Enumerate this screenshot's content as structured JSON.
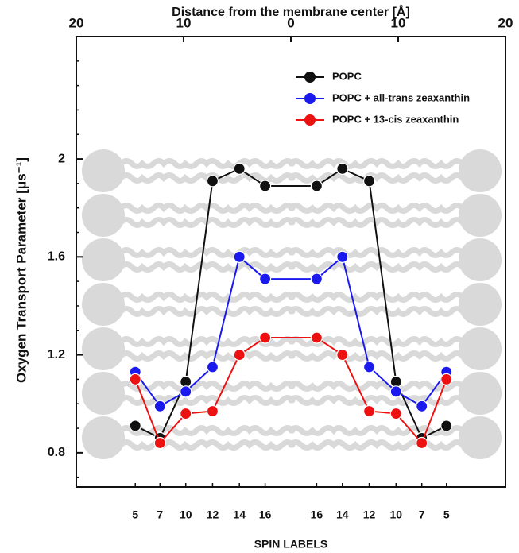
{
  "chart_data": {
    "type": "line",
    "title": "Distance from the membrane center [Å]",
    "xlabel": "SPIN LABELS",
    "ylabel": "Oxygen Transport Parameter [μs⁻¹]",
    "x": [
      -14.5,
      -12.2,
      -9.8,
      -7.3,
      -4.8,
      -2.4,
      2.4,
      4.8,
      7.3,
      9.8,
      12.2,
      14.5
    ],
    "xlim": [
      -20,
      20
    ],
    "xticks": [
      {
        "value": -20,
        "label": "20"
      },
      {
        "value": -10,
        "label": "10"
      },
      0,
      10,
      20
    ],
    "bottom_ticks": [
      {
        "value": -14.5,
        "label": "5"
      },
      {
        "value": -12.2,
        "label": "7"
      },
      {
        "value": -9.8,
        "label": "10"
      },
      {
        "value": -7.3,
        "label": "12"
      },
      {
        "value": -4.8,
        "label": "14"
      },
      {
        "value": -2.4,
        "label": "16"
      },
      {
        "value": 2.4,
        "label": "16"
      },
      {
        "value": 4.8,
        "label": "14"
      },
      {
        "value": 7.3,
        "label": "12"
      },
      {
        "value": 9.8,
        "label": "10"
      },
      {
        "value": 12.2,
        "label": "7"
      },
      {
        "value": 14.5,
        "label": "5"
      }
    ],
    "ylim": [
      0.66,
      2.5
    ],
    "yticks": [
      0.8,
      1.2,
      1.6,
      2
    ],
    "yticks_minor": [
      0.7,
      0.9,
      1,
      1.1,
      1.3,
      1.4,
      1.5,
      1.7,
      1.8,
      1.9,
      2.1,
      2.2,
      2.3,
      2.4
    ],
    "series": [
      {
        "name": "POPC",
        "color": "#111111",
        "values": [
          0.91,
          0.86,
          1.09,
          1.91,
          1.96,
          1.89,
          1.89,
          1.96,
          1.91,
          1.09,
          0.86,
          0.91
        ]
      },
      {
        "name": "POPC + all-trans zeaxanthin",
        "color": "#1a1aee",
        "values": [
          1.13,
          0.99,
          1.05,
          1.15,
          1.6,
          1.51,
          1.51,
          1.6,
          1.15,
          1.05,
          0.99,
          1.13
        ]
      },
      {
        "name": "POPC + 13-cis zeaxanthin",
        "color": "#ee1111",
        "values": [
          1.1,
          0.84,
          0.96,
          0.97,
          1.2,
          1.27,
          1.27,
          1.2,
          0.97,
          0.96,
          0.84,
          1.1
        ]
      }
    ]
  }
}
